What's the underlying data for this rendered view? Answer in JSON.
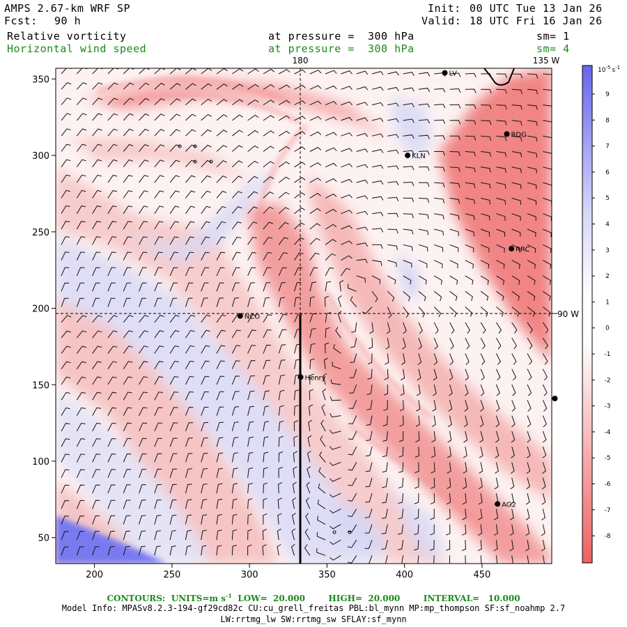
{
  "header": {
    "model": "AMPS 2.67-km WRF SP",
    "init_label": "Init:",
    "init_value": "00 UTC Tue 13 Jan 26",
    "fcst_label": "Fcst:",
    "fcst_value": "90 h",
    "valid_label": "Valid:",
    "valid_value": "18 UTC Fri 16 Jan 26",
    "field1": "Relative vorticity",
    "field1_pressure": "at pressure =  300 hPa",
    "field1_sm": "sm= 1",
    "field2": "Horizontal wind speed",
    "field2_pressure": "at pressure =  300 hPa",
    "field2_sm": "sm= 4"
  },
  "map": {
    "lon_label_180": "180",
    "lon_label_135w": "135 W",
    "lon_label_90w": "90 W",
    "stations": [
      {
        "name": "LV",
        "x": 426,
        "y": 354
      },
      {
        "name": "RDG",
        "x": 466,
        "y": 314
      },
      {
        "name": "KLN",
        "x": 402,
        "y": 300
      },
      {
        "name": "RRC",
        "x": 469,
        "y": 239
      },
      {
        "name": "NCO",
        "x": 294,
        "y": 195
      },
      {
        "name": "Henry",
        "x": 333,
        "y": 155
      },
      {
        "name": "AG2",
        "x": 460,
        "y": 72
      },
      {
        "name": "",
        "x": 497,
        "y": 141
      }
    ],
    "x_axis": {
      "ticks": [
        200,
        250,
        300,
        350,
        400,
        450
      ],
      "range": [
        175,
        495
      ]
    },
    "y_axis": {
      "ticks": [
        50,
        100,
        150,
        200,
        250,
        300,
        350
      ],
      "range": [
        33,
        357
      ]
    }
  },
  "colorbar": {
    "unit_label": "10",
    "unit_exp": "-5",
    "unit_suffix": "s",
    "unit_suffix_exp": "-1",
    "ticks": [
      "9",
      "8",
      "7",
      "6",
      "5",
      "4",
      "3",
      "2",
      "1",
      "0",
      "-1",
      "-2",
      "-3",
      "-4",
      "-5",
      "-6",
      "-7",
      "-8"
    ],
    "positive_color": "#6666ee",
    "negative_color": "#f07070"
  },
  "footer": {
    "contours": "CONTOURS:",
    "units_label": "UNITS=m s",
    "units_exp": "-1",
    "low": "LOW=  20.000",
    "high": "HIGH=  20.000",
    "interval": "INTERVAL=   10.000",
    "model_info": "Model Info: MPASv8.2.3-194-gf29cd82c CU:cu_grell_freitas PBL:bl_mynn MP:mp_thompson SF:sf_noahmp 2.7",
    "model_info2": "LW:rrtmg_lw SW:rrtmg_sw SFLAY:sf_mynn"
  }
}
